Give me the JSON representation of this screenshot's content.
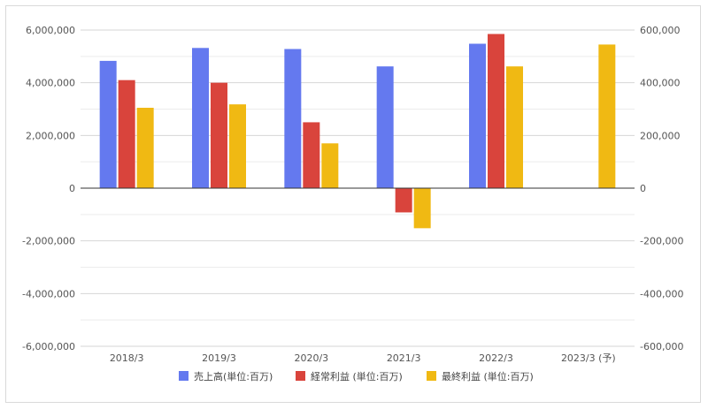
{
  "chart_data": {
    "type": "bar",
    "categories": [
      "2018/3",
      "2019/3",
      "2020/3",
      "2021/3",
      "2022/3",
      "2023/3 (予)"
    ],
    "series": [
      {
        "name": "売上高(単位:百万)",
        "axis": "left",
        "color": "#6479ef",
        "values": [
          4830000,
          5320000,
          5280000,
          4620000,
          5480000,
          null
        ]
      },
      {
        "name": "経常利益 (単位:百万)",
        "axis": "right",
        "color": "#d9443c",
        "values": [
          410000,
          400000,
          250000,
          -92000,
          585000,
          null
        ]
      },
      {
        "name": "最終利益 (単位:百万)",
        "axis": "right",
        "color": "#f0b913",
        "values": [
          305000,
          318000,
          170000,
          -152000,
          462000,
          545000
        ]
      }
    ],
    "left_axis": {
      "min": -6000000,
      "max": 6000000,
      "ticks": [
        "6,000,000",
        "4,000,000",
        "2,000,000",
        "0",
        "-2,000,000",
        "-4,000,000",
        "-6,000,000"
      ]
    },
    "right_axis": {
      "min": -600000,
      "max": 600000,
      "ticks": [
        "600,000",
        "400,000",
        "200,000",
        "0",
        "-200,000",
        "-400,000",
        "-600,000"
      ]
    },
    "grid": true,
    "legend": "bottom"
  }
}
